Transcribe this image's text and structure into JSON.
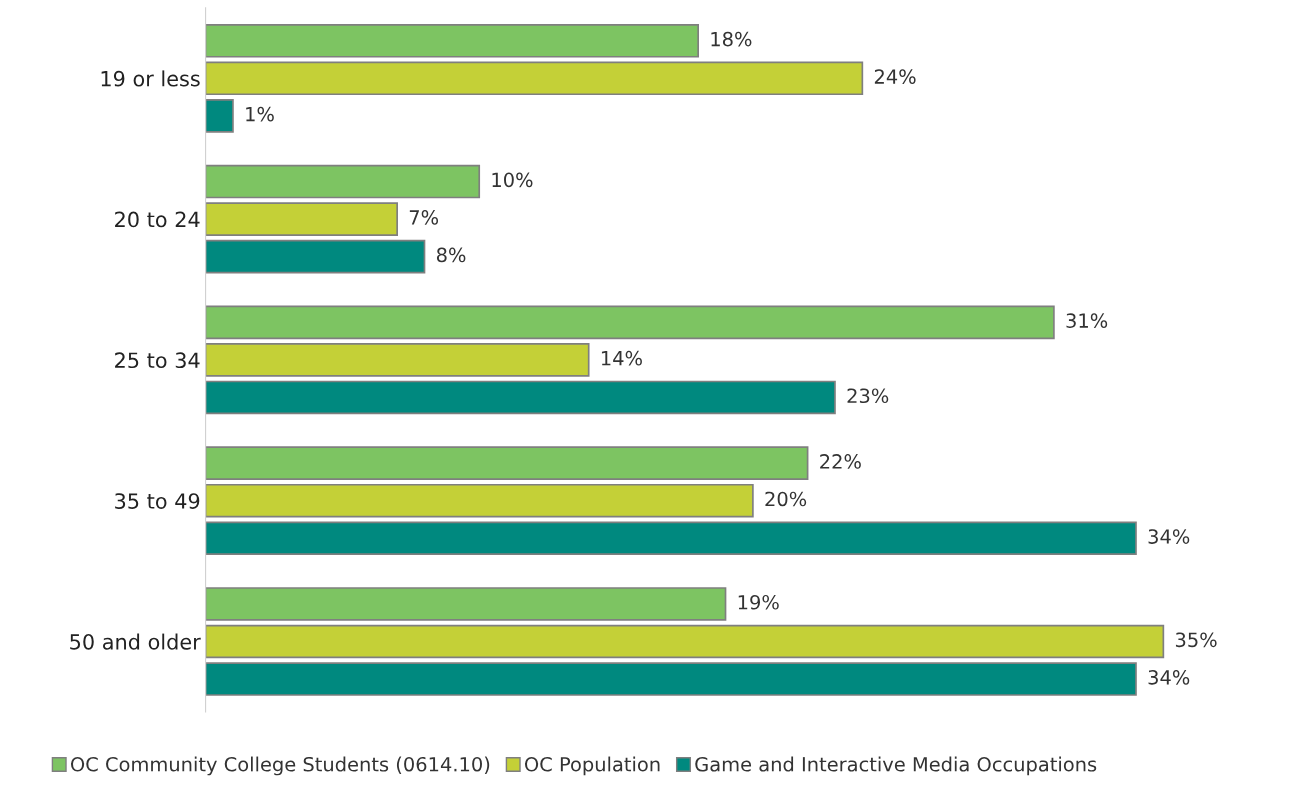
{
  "chart_data": {
    "type": "bar",
    "orientation": "horizontal",
    "categories": [
      "19 or less",
      "20 to 24",
      "25 to 34",
      "35 to 49",
      "50 and older"
    ],
    "series": [
      {
        "name": "OC Community College Students (0614.10)",
        "color": "#7dc462",
        "values": [
          18,
          10,
          31,
          22,
          19
        ],
        "value_labels": [
          "18%",
          "10%",
          "31%",
          "22%",
          "19%"
        ]
      },
      {
        "name": "OC Population",
        "color": "#c4d037",
        "values": [
          24,
          7,
          14,
          20,
          35
        ],
        "value_labels": [
          "24%",
          "7%",
          "14%",
          "20%",
          "35%"
        ]
      },
      {
        "name": "Game and Interactive Media Occupations",
        "color": "#00897f",
        "values": [
          1,
          8,
          23,
          34,
          34
        ],
        "value_labels": [
          "1%",
          "8%",
          "23%",
          "34%",
          "34%"
        ]
      }
    ],
    "legend": "bottom",
    "grid": false,
    "tick_labels": "y"
  }
}
